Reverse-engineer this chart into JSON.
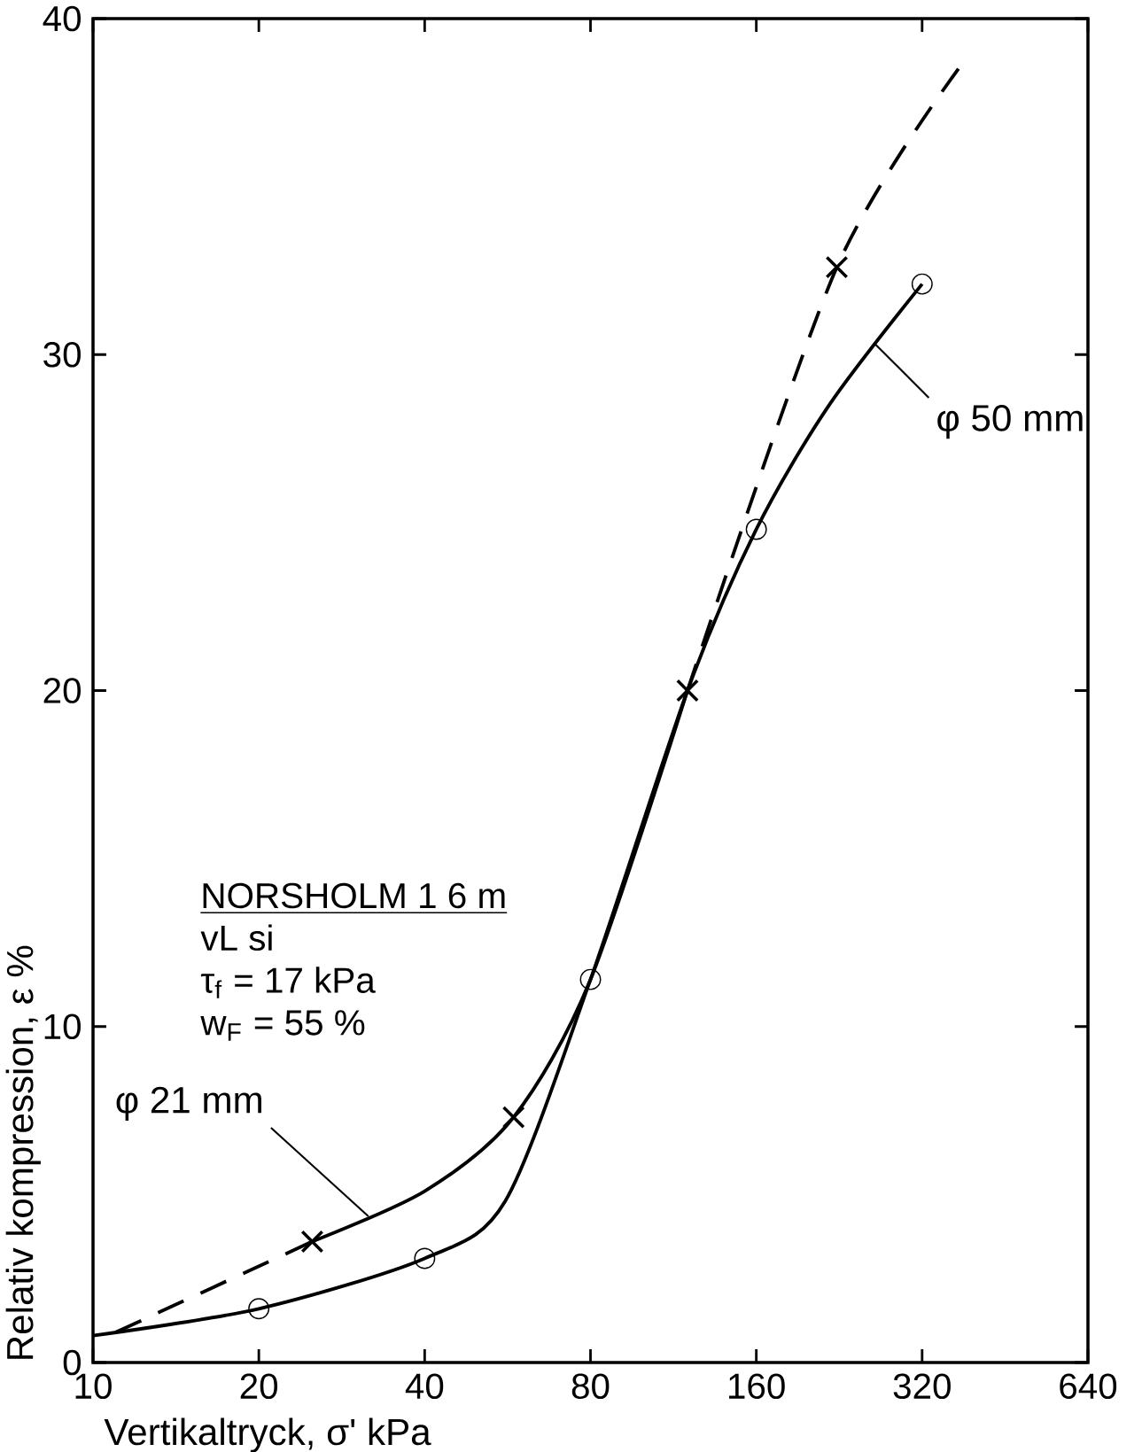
{
  "chart_data": {
    "type": "line",
    "xlabel": "Vertikaltryck, σ' kPa",
    "ylabel": "Relativ kompression, ε %",
    "log": "x",
    "xlim": [
      10,
      640
    ],
    "ylim": [
      0,
      40
    ],
    "xticks": [
      10,
      20,
      40,
      80,
      160,
      320,
      640
    ],
    "yticks": [
      0,
      10,
      20,
      30,
      40
    ],
    "annotations": [
      "NORSHOLM 1  6 m",
      "vL si",
      "τ$_{f}$ = 17 kPa",
      "w$_{F}$ = 55 %"
    ],
    "series": [
      {
        "name": "φ 21 mm",
        "type": "line",
        "color": "#000000",
        "line_style": "solid",
        "marker": "none",
        "x": [
          25,
          40,
          58,
          80,
          120
        ],
        "values": [
          3.6,
          5.1,
          7.3,
          11.4,
          20
        ]
      },
      {
        "type": "line",
        "color": "#000000",
        "line_style": "dashed",
        "marker": "none",
        "x": [
          11,
          25,
          60,
          120,
          224,
          380
        ],
        "values": [
          0.9,
          3.6,
          null,
          20,
          32.6,
          38.7
        ]
      },
      {
        "type": "scatter",
        "color": "#000000",
        "marker": "cross",
        "x": [
          25,
          58,
          120,
          224
        ],
        "values": [
          3.6,
          7.3,
          20,
          32.6
        ]
      },
      {
        "name": "φ 50 mm",
        "type": "line",
        "color": "#000000",
        "line_style": "solid",
        "marker": "none",
        "x": [
          10,
          20,
          40,
          56,
          80,
          120,
          160,
          217,
          320
        ],
        "values": [
          0.8,
          1.6,
          3.1,
          4.8,
          11.4,
          20,
          24.8,
          28.5,
          32.1
        ]
      },
      {
        "type": "scatter",
        "color": "#000000",
        "marker": "circle",
        "x": [
          20,
          40,
          80,
          160,
          320
        ],
        "values": [
          1.6,
          3.1,
          11.4,
          24.8,
          32.1
        ]
      }
    ]
  }
}
